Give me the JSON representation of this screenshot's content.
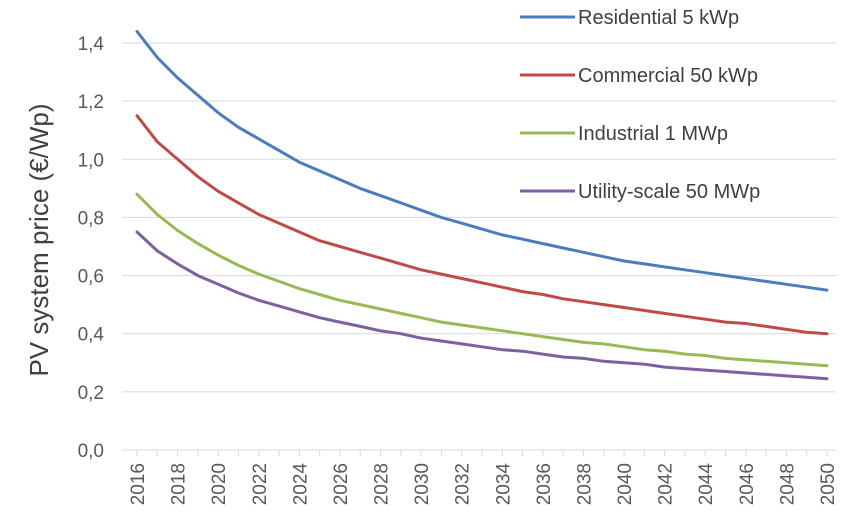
{
  "chart_data": {
    "type": "line",
    "title": "",
    "xlabel": "",
    "ylabel": "PV system price (€/Wp)",
    "ylim": [
      0,
      1.4
    ],
    "y_ticks": [
      "0,0",
      "0,2",
      "0,4",
      "0,6",
      "0,8",
      "1,0",
      "1,2",
      "1,4"
    ],
    "y_tick_values": [
      0,
      0.2,
      0.4,
      0.6,
      0.8,
      1.0,
      1.2,
      1.4
    ],
    "x": [
      2016,
      2017,
      2018,
      2019,
      2020,
      2021,
      2022,
      2023,
      2024,
      2025,
      2026,
      2027,
      2028,
      2029,
      2030,
      2031,
      2032,
      2033,
      2034,
      2035,
      2036,
      2037,
      2038,
      2039,
      2040,
      2041,
      2042,
      2043,
      2044,
      2045,
      2046,
      2047,
      2048,
      2049,
      2050
    ],
    "x_ticks": [
      "2016",
      "2018",
      "2020",
      "2022",
      "2024",
      "2026",
      "2028",
      "2030",
      "2032",
      "2034",
      "2036",
      "2038",
      "2040",
      "2042",
      "2044",
      "2046",
      "2048",
      "2050"
    ],
    "x_tick_values": [
      2016,
      2018,
      2020,
      2022,
      2024,
      2026,
      2028,
      2030,
      2032,
      2034,
      2036,
      2038,
      2040,
      2042,
      2044,
      2046,
      2048,
      2050
    ],
    "grid": true,
    "legend_position": "top-right",
    "series": [
      {
        "name": "Residential 5 kWp",
        "color": "#4a7ebb",
        "values": [
          1.44,
          1.35,
          1.28,
          1.22,
          1.16,
          1.11,
          1.07,
          1.03,
          0.99,
          0.96,
          0.93,
          0.9,
          0.875,
          0.85,
          0.825,
          0.8,
          0.78,
          0.76,
          0.74,
          0.725,
          0.71,
          0.695,
          0.68,
          0.665,
          0.65,
          0.64,
          0.63,
          0.62,
          0.61,
          0.6,
          0.59,
          0.58,
          0.57,
          0.56,
          0.55
        ]
      },
      {
        "name": "Commercial 50 kWp",
        "color": "#be4b48",
        "values": [
          1.15,
          1.06,
          1.0,
          0.94,
          0.89,
          0.85,
          0.81,
          0.78,
          0.75,
          0.72,
          0.7,
          0.68,
          0.66,
          0.64,
          0.62,
          0.605,
          0.59,
          0.575,
          0.56,
          0.545,
          0.535,
          0.52,
          0.51,
          0.5,
          0.49,
          0.48,
          0.47,
          0.46,
          0.45,
          0.44,
          0.435,
          0.425,
          0.415,
          0.405,
          0.4
        ]
      },
      {
        "name": "Industrial 1 MWp",
        "color": "#98b954",
        "values": [
          0.88,
          0.81,
          0.755,
          0.71,
          0.67,
          0.635,
          0.605,
          0.58,
          0.555,
          0.535,
          0.515,
          0.5,
          0.485,
          0.47,
          0.455,
          0.44,
          0.43,
          0.42,
          0.41,
          0.4,
          0.39,
          0.38,
          0.37,
          0.365,
          0.355,
          0.345,
          0.34,
          0.33,
          0.325,
          0.315,
          0.31,
          0.305,
          0.3,
          0.295,
          0.29
        ]
      },
      {
        "name": "Utility-scale 50 MWp",
        "color": "#7d60a0",
        "values": [
          0.75,
          0.685,
          0.64,
          0.6,
          0.57,
          0.54,
          0.515,
          0.495,
          0.475,
          0.455,
          0.44,
          0.425,
          0.41,
          0.4,
          0.385,
          0.375,
          0.365,
          0.355,
          0.345,
          0.34,
          0.33,
          0.32,
          0.315,
          0.305,
          0.3,
          0.295,
          0.285,
          0.28,
          0.275,
          0.27,
          0.265,
          0.26,
          0.255,
          0.25,
          0.245
        ]
      }
    ]
  }
}
